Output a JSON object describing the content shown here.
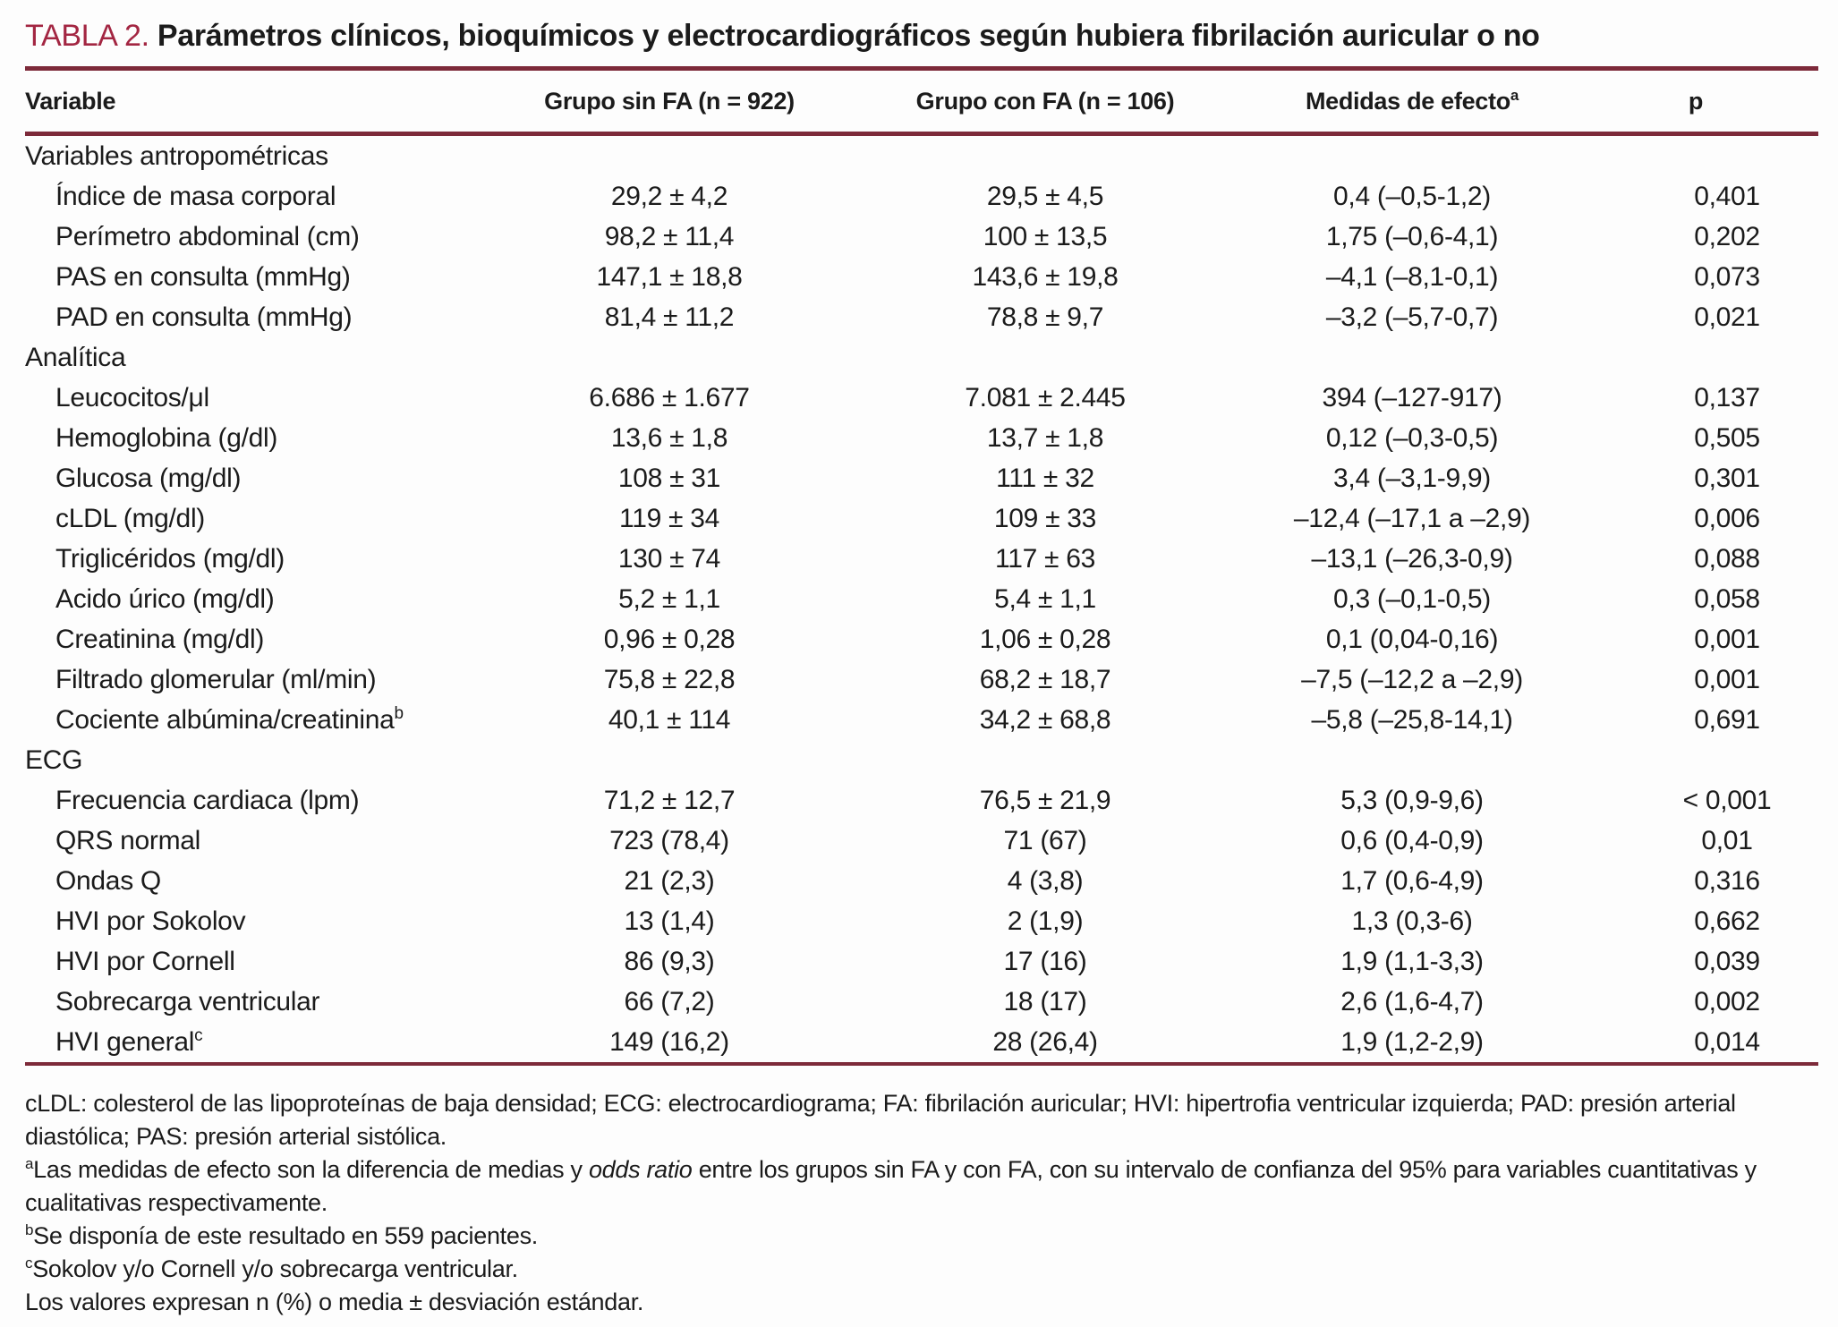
{
  "title": {
    "label": "TABLA 2.",
    "text": "Parámetros clínicos, bioquímicos y electrocardiográficos según hubiera fibrilación auricular o no"
  },
  "colors": {
    "title_accent": "#a32642",
    "rule": "#7d2a3a",
    "text": "#1b1b1b"
  },
  "table": {
    "columns": [
      {
        "label": "Variable",
        "sup": ""
      },
      {
        "label": "Grupo sin FA (n = 922)",
        "sup": ""
      },
      {
        "label": "Grupo con FA (n = 106)",
        "sup": ""
      },
      {
        "label": "Medidas de efecto",
        "sup": "a"
      },
      {
        "label": "p",
        "sup": ""
      }
    ],
    "rows": [
      {
        "type": "section",
        "label": "Variables antropométricas",
        "sup": "",
        "v1": "",
        "v2": "",
        "v3": "",
        "p": ""
      },
      {
        "type": "item",
        "label": "Índice de masa corporal",
        "sup": "",
        "v1": "29,2 ± 4,2",
        "v2": "29,5 ± 4,5",
        "v3": "0,4 (–0,5-1,2)",
        "p": "0,401"
      },
      {
        "type": "item",
        "label": "Perímetro abdominal (cm)",
        "sup": "",
        "v1": "98,2 ± 11,4",
        "v2": "100 ± 13,5",
        "v3": "1,75 (–0,6-4,1)",
        "p": "0,202"
      },
      {
        "type": "item",
        "label": "PAS en consulta (mmHg)",
        "sup": "",
        "v1": "147,1 ± 18,8",
        "v2": "143,6 ± 19,8",
        "v3": "–4,1 (–8,1-0,1)",
        "p": "0,073"
      },
      {
        "type": "item",
        "label": "PAD en consulta (mmHg)",
        "sup": "",
        "v1": "81,4 ± 11,2",
        "v2": "78,8 ± 9,7",
        "v3": "–3,2 (–5,7-0,7)",
        "p": "0,021"
      },
      {
        "type": "section",
        "label": "Analítica",
        "sup": "",
        "v1": "",
        "v2": "",
        "v3": "",
        "p": ""
      },
      {
        "type": "item",
        "label": "Leucocitos/μl",
        "sup": "",
        "v1": "6.686 ± 1.677",
        "v2": "7.081 ± 2.445",
        "v3": "394 (–127-917)",
        "p": "0,137"
      },
      {
        "type": "item",
        "label": "Hemoglobina (g/dl)",
        "sup": "",
        "v1": "13,6 ± 1,8",
        "v2": "13,7 ± 1,8",
        "v3": "0,12 (–0,3-0,5)",
        "p": "0,505"
      },
      {
        "type": "item",
        "label": "Glucosa (mg/dl)",
        "sup": "",
        "v1": "108 ± 31",
        "v2": "111 ± 32",
        "v3": "3,4 (–3,1-9,9)",
        "p": "0,301"
      },
      {
        "type": "item",
        "label": "cLDL (mg/dl)",
        "sup": "",
        "v1": "119 ± 34",
        "v2": "109 ± 33",
        "v3": "–12,4 (–17,1 a –2,9)",
        "p": "0,006"
      },
      {
        "type": "item",
        "label": "Triglicéridos (mg/dl)",
        "sup": "",
        "v1": "130 ± 74",
        "v2": "117 ± 63",
        "v3": "–13,1 (–26,3-0,9)",
        "p": "0,088"
      },
      {
        "type": "item",
        "label": "Acido úrico (mg/dl)",
        "sup": "",
        "v1": "5,2 ± 1,1",
        "v2": "5,4 ± 1,1",
        "v3": "0,3 (–0,1-0,5)",
        "p": "0,058"
      },
      {
        "type": "item",
        "label": "Creatinina (mg/dl)",
        "sup": "",
        "v1": "0,96 ± 0,28",
        "v2": "1,06 ± 0,28",
        "v3": "0,1 (0,04-0,16)",
        "p": "0,001"
      },
      {
        "type": "item",
        "label": "Filtrado glomerular (ml/min)",
        "sup": "",
        "v1": "75,8 ± 22,8",
        "v2": "68,2 ± 18,7",
        "v3": "–7,5 (–12,2 a –2,9)",
        "p": "0,001"
      },
      {
        "type": "item",
        "label": "Cociente albúmina/creatinina",
        "sup": "b",
        "v1": "40,1 ± 114",
        "v2": "34,2 ± 68,8",
        "v3": "–5,8 (–25,8-14,1)",
        "p": "0,691"
      },
      {
        "type": "section",
        "label": "ECG",
        "sup": "",
        "v1": "",
        "v2": "",
        "v3": "",
        "p": ""
      },
      {
        "type": "item",
        "label": "Frecuencia cardiaca (lpm)",
        "sup": "",
        "v1": "71,2 ± 12,7",
        "v2": "76,5 ± 21,9",
        "v3": "5,3 (0,9-9,6)",
        "p": "< 0,001"
      },
      {
        "type": "item",
        "label": "QRS normal",
        "sup": "",
        "v1": "723 (78,4)",
        "v2": "71 (67)",
        "v3": "0,6 (0,4-0,9)",
        "p": "0,01"
      },
      {
        "type": "item",
        "label": "Ondas Q",
        "sup": "",
        "v1": "21 (2,3)",
        "v2": "4 (3,8)",
        "v3": "1,7 (0,6-4,9)",
        "p": "0,316"
      },
      {
        "type": "item",
        "label": "HVI por Sokolov",
        "sup": "",
        "v1": "13 (1,4)",
        "v2": "2 (1,9)",
        "v3": "1,3 (0,3-6)",
        "p": "0,662"
      },
      {
        "type": "item",
        "label": "HVI por Cornell",
        "sup": "",
        "v1": "86 (9,3)",
        "v2": "17 (16)",
        "v3": "1,9 (1,1-3,3)",
        "p": "0,039"
      },
      {
        "type": "item",
        "label": "Sobrecarga ventricular",
        "sup": "",
        "v1": "66 (7,2)",
        "v2": "18 (17)",
        "v3": "2,6 (1,6-4,7)",
        "p": "0,002"
      },
      {
        "type": "item",
        "label": "HVI general",
        "sup": "c",
        "v1": "149 (16,2)",
        "v2": "28 (26,4)",
        "v3": "1,9 (1,2-2,9)",
        "p": "0,014"
      }
    ]
  },
  "footnotes": [
    {
      "sup": "",
      "parts": [
        {
          "text": "cLDL: colesterol de las lipoproteínas de baja densidad; ECG: electrocardiograma; FA: fibrilación auricular; HVI: hipertrofia ventricular izquierda; PAD: presión arterial diastólica; PAS: presión arterial sistólica."
        }
      ]
    },
    {
      "sup": "a",
      "parts": [
        {
          "text": "Las medidas de efecto son la diferencia de medias y "
        },
        {
          "text": "odds ratio",
          "italic": true
        },
        {
          "text": " entre los grupos sin FA y con FA, con su intervalo de confianza del 95% para variables cuantitativas y cualitativas respectivamente."
        }
      ]
    },
    {
      "sup": "b",
      "parts": [
        {
          "text": "Se disponía de este resultado en 559 pacientes."
        }
      ]
    },
    {
      "sup": "c",
      "parts": [
        {
          "text": "Sokolov y/o Cornell y/o sobrecarga ventricular."
        }
      ]
    },
    {
      "sup": "",
      "parts": [
        {
          "text": "Los valores expresan n (%) o media ± desviación estándar."
        }
      ]
    }
  ]
}
